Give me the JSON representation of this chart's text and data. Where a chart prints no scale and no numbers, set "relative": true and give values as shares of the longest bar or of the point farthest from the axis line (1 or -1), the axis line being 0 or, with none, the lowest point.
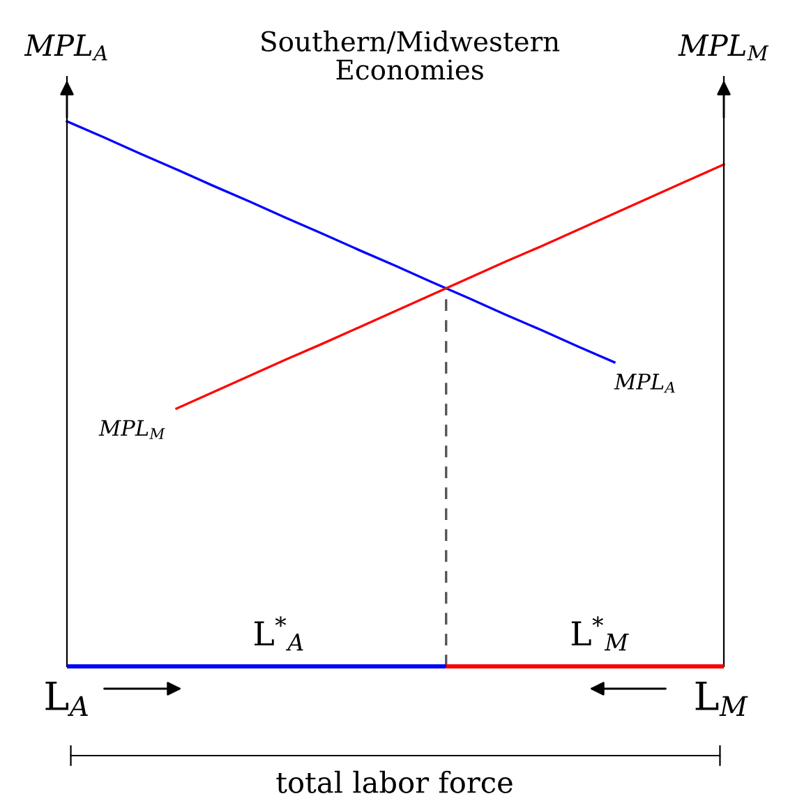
{
  "chart_data": {
    "type": "line",
    "title": "Southern/Midwestern\nEconomies",
    "ylabel": "MPL$_{A}$",
    "y2label": "MPL$_{M}$",
    "relative": true,
    "categories": [
      null,
      null,
      null,
      null,
      null,
      null,
      null,
      null,
      null,
      null,
      null,
      null,
      null,
      null,
      null,
      null,
      null,
      null,
      null
    ],
    "series": [
      {
        "name": "MPL$_{A}$",
        "color": "#0000ff",
        "values": [
          1,
          0.971,
          0.941,
          0.912,
          0.882,
          0.853,
          0.823,
          0.794,
          0.764,
          0.735,
          0.705,
          0.676,
          0.646,
          0.617,
          0.587,
          0.558,
          null,
          null,
          null
        ]
      },
      {
        "name": "MPL$_{M}$",
        "color": "#ff0000",
        "values": [
          null,
          null,
          null,
          0.473,
          0.503,
          0.533,
          0.563,
          0.592,
          0.622,
          0.652,
          0.682,
          0.712,
          0.742,
          0.771,
          0.801,
          0.831,
          0.861,
          0.891,
          0.921
        ]
      }
    ],
    "annotations": [
      "L$^{*}$$_{A}$",
      "L$^{*}$$_{M}$",
      "L$_{A}$",
      "L$_{M}$",
      "total labor force"
    ],
    "legend": false,
    "marker": "none"
  }
}
